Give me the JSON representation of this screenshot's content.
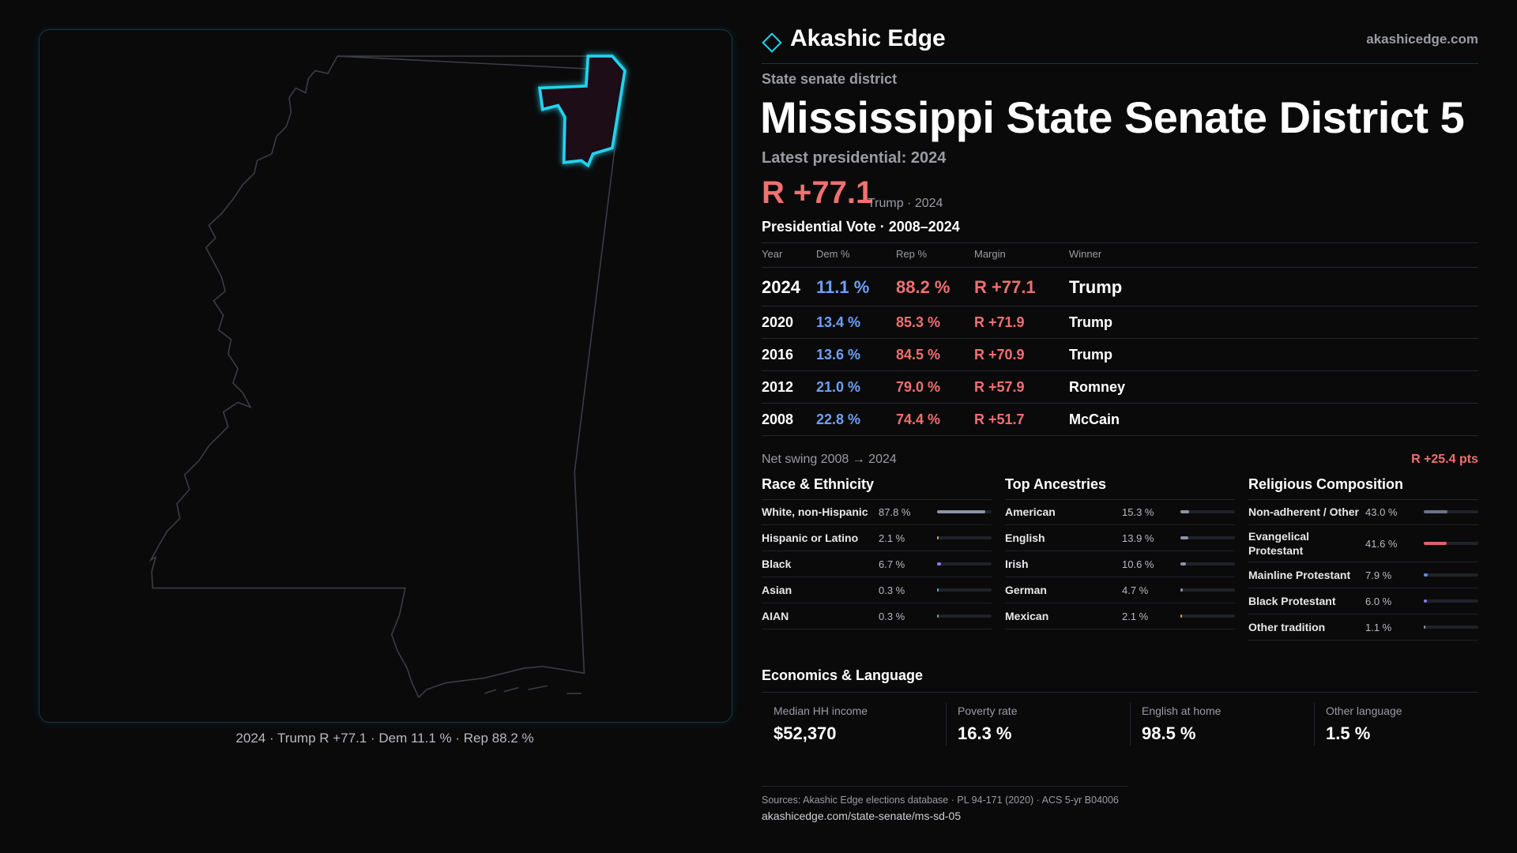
{
  "header": {
    "brand": "Akashic Edge",
    "site": "akashicedge.com"
  },
  "district": {
    "kind": "State senate district",
    "name": "Mississippi State Senate District 5",
    "latest": "Latest presidential: 2024",
    "margin": "R +77.1",
    "margin_note": "Trump · 2024"
  },
  "map_caption": "2024 · Trump R +77.1 · Dem 11.1 % · Rep 88.2 %",
  "presidential": {
    "title": "Presidential Vote · 2008–2024",
    "columns": [
      "Year",
      "Dem %",
      "Rep %",
      "Margin",
      "Winner"
    ],
    "rows": [
      [
        "2024",
        "11.1 %",
        "88.2 %",
        "R +77.1",
        "Trump"
      ],
      [
        "2020",
        "13.4 %",
        "85.3 %",
        "R +71.9",
        "Trump"
      ],
      [
        "2016",
        "13.6 %",
        "84.5 %",
        "R +70.9",
        "Trump"
      ],
      [
        "2012",
        "21.0 %",
        "79.0 %",
        "R +57.9",
        "Romney"
      ],
      [
        "2008",
        "22.8 %",
        "74.4 %",
        "R +51.7",
        "McCain"
      ]
    ],
    "swing_label": "Net swing 2008 → 2024",
    "swing": "R +25.4 pts"
  },
  "race": {
    "title": "Race & Ethnicity",
    "rows": [
      {
        "name": "White, non-Hispanic",
        "share": {
          "value": 87.8,
          "label": "87.8 %"
        },
        "color": "#8a94a8"
      },
      {
        "name": "Hispanic or Latino",
        "share": {
          "value": 2.1,
          "label": "2.1 %"
        },
        "color": "#c9a74a"
      },
      {
        "name": "Black",
        "share": {
          "value": 6.7,
          "label": "6.7 %"
        },
        "color": "#8b7cf0"
      },
      {
        "name": "Asian",
        "share": {
          "value": 0.3,
          "label": "0.3 %"
        },
        "color": "#4fb3c9"
      },
      {
        "name": "AIAN",
        "share": {
          "value": 0.3,
          "label": "0.3 %"
        },
        "color": "#7aa86b"
      }
    ]
  },
  "ancestry": {
    "title": "Top Ancestries",
    "rows": [
      {
        "name": "American",
        "share": {
          "value": 15.3,
          "label": "15.3 %"
        },
        "color": "#8a94a8"
      },
      {
        "name": "English",
        "share": {
          "value": 13.9,
          "label": "13.9 %"
        },
        "color": "#8a94a8"
      },
      {
        "name": "Irish",
        "share": {
          "value": 10.6,
          "label": "10.6 %"
        },
        "color": "#8a94a8"
      },
      {
        "name": "German",
        "share": {
          "value": 4.7,
          "label": "4.7 %"
        },
        "color": "#8a94a8"
      },
      {
        "name": "Mexican",
        "share": {
          "value": 2.1,
          "label": "2.1 %"
        },
        "color": "#c9a74a"
      }
    ]
  },
  "religion": {
    "title": "Religious Composition",
    "rows": [
      {
        "name": "Non-adherent / Other",
        "share": {
          "value": 43.0,
          "label": "43.0 %"
        },
        "color": "#6b7385"
      },
      {
        "name": "Evangelical Protestant",
        "share": {
          "value": 41.6,
          "label": "41.6 %"
        },
        "color": "#e0606a"
      },
      {
        "name": "Mainline Protestant",
        "share": {
          "value": 7.9,
          "label": "7.9 %"
        },
        "color": "#5b8def"
      },
      {
        "name": "Black Protestant",
        "share": {
          "value": 6.0,
          "label": "6.0 %"
        },
        "color": "#8b7cf0"
      },
      {
        "name": "Other tradition",
        "share": {
          "value": 1.1,
          "label": "1.1 %"
        },
        "color": "#8a94a8"
      }
    ]
  },
  "economics": {
    "title": "Economics & Language",
    "cards": [
      {
        "label": "Median HH income",
        "value": "$52,370"
      },
      {
        "label": "Poverty rate",
        "value": "16.3 %"
      },
      {
        "label": "English at home",
        "value": "98.5 %"
      },
      {
        "label": "Other language",
        "value": "1.5 %"
      }
    ]
  },
  "sources": {
    "text": "Sources: Akashic Edge elections database · PL 94-171 (2020) · ACS 5-yr B04006",
    "url": "akashicedge.com/state-senate/ms-sd-05"
  }
}
